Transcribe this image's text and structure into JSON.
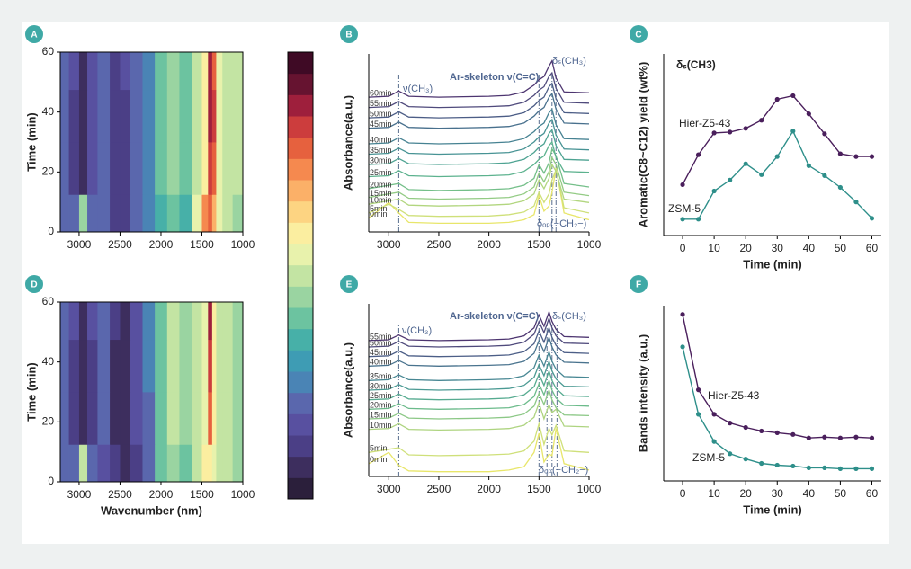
{
  "colorbar_colors": [
    "#2b1f3b",
    "#3d2e5e",
    "#4b3f86",
    "#5850a0",
    "#5a67ad",
    "#4a84b5",
    "#3e9cb4",
    "#47b0a8",
    "#6cc3a0",
    "#9ad4a1",
    "#c3e4a3",
    "#e8f2ac",
    "#fbeea0",
    "#fdd482",
    "#fbb068",
    "#f5894f",
    "#e6613e",
    "#cc3d3d",
    "#9e1f3c",
    "#661330",
    "#3f0a25"
  ],
  "chart_data": [
    {
      "type": "heatmap",
      "panel": "A",
      "ylabel": "Time (min)",
      "x": [
        3200,
        3050,
        2950,
        2850,
        2700,
        2550,
        2450,
        2300,
        2150,
        2000,
        1850,
        1700,
        1550,
        1450,
        1400,
        1350,
        1300,
        1200,
        1050
      ],
      "y": [
        5,
        20,
        40,
        55
      ],
      "z": [
        [
          0.2,
          0.2,
          0.45,
          0.2,
          0.18,
          0.08,
          0.1,
          0.18,
          0.25,
          0.35,
          0.42,
          0.35,
          0.55,
          0.75,
          0.8,
          0.7,
          0.55,
          0.5,
          0.45
        ],
        [
          0.22,
          0.1,
          0.05,
          0.14,
          0.2,
          0.1,
          0.12,
          0.2,
          0.26,
          0.38,
          0.45,
          0.4,
          0.5,
          0.6,
          0.86,
          0.8,
          0.55,
          0.5,
          0.48
        ],
        [
          0.22,
          0.12,
          0.06,
          0.16,
          0.21,
          0.1,
          0.12,
          0.2,
          0.25,
          0.4,
          0.46,
          0.42,
          0.5,
          0.62,
          0.9,
          0.84,
          0.56,
          0.5,
          0.48
        ],
        [
          0.22,
          0.13,
          0.07,
          0.17,
          0.22,
          0.11,
          0.13,
          0.22,
          0.27,
          0.4,
          0.47,
          0.42,
          0.52,
          0.62,
          0.88,
          0.8,
          0.55,
          0.5,
          0.48
        ]
      ],
      "xlim": [
        3230,
        1000
      ],
      "ylim": [
        0,
        60
      ],
      "xticks": [
        3000,
        2500,
        2000,
        1500,
        1000
      ],
      "yticks": [
        0,
        20,
        40,
        60
      ]
    },
    {
      "type": "spectra",
      "panel": "B",
      "ylabel": "Absorbance(a.u.)",
      "annotations": [
        "ν(CH₃)",
        "Ar-skeleton ν(C=C)",
        "δₛ(CH₃)",
        "δₒₚ(−CH₂−)"
      ],
      "x": [
        3200,
        3000,
        2900,
        2800,
        2500,
        2000,
        1800,
        1650,
        1550,
        1500,
        1450,
        1400,
        1370,
        1330,
        1250,
        1000
      ],
      "series": [
        {
          "name": "0min",
          "color": "#e8e66a",
          "values": [
            0.8,
            1.7,
            1.1,
            0.55,
            0.5,
            0.5,
            0.55,
            0.7,
            1.0,
            2.1,
            1.2,
            1.5,
            2.3,
            3.7,
            1.1,
            0.7
          ]
        },
        {
          "name": "5min",
          "color": "#cfe07a",
          "values": [
            1.1,
            1.6,
            1.3,
            0.95,
            0.9,
            0.92,
            1.0,
            1.15,
            1.5,
            2.3,
            1.7,
            2.2,
            3.0,
            3.6,
            1.4,
            1.1
          ]
        },
        {
          "name": "10min",
          "color": "#b2d67f",
          "values": [
            1.6,
            1.8,
            1.9,
            1.55,
            1.5,
            1.55,
            1.6,
            1.8,
            2.2,
            3.0,
            2.5,
            3.1,
            3.9,
            3.5,
            1.9,
            1.7
          ]
        },
        {
          "name": "15min",
          "color": "#93cb84",
          "values": [
            2.0,
            2.2,
            2.3,
            1.95,
            1.9,
            1.95,
            2.0,
            2.2,
            2.6,
            3.4,
            2.9,
            3.5,
            4.3,
            3.9,
            2.3,
            2.1
          ]
        },
        {
          "name": "20min",
          "color": "#74bf89",
          "values": [
            2.5,
            2.7,
            2.8,
            2.45,
            2.4,
            2.45,
            2.5,
            2.7,
            3.1,
            3.9,
            3.4,
            4.0,
            4.8,
            4.4,
            2.8,
            2.6
          ]
        },
        {
          "name": "25min",
          "color": "#5cb28e",
          "values": [
            3.2,
            3.25,
            3.55,
            3.25,
            3.2,
            3.25,
            3.3,
            3.5,
            3.9,
            4.2,
            4.4,
            5.0,
            5.2,
            4.3,
            3.5,
            3.45
          ]
        },
        {
          "name": "30min",
          "color": "#4ea392",
          "values": [
            3.9,
            3.95,
            4.25,
            3.95,
            3.9,
            3.95,
            4.0,
            4.2,
            4.6,
            4.9,
            5.1,
            5.7,
            5.9,
            5.0,
            4.2,
            4.15
          ]
        },
        {
          "name": "35min",
          "color": "#479394",
          "values": [
            4.5,
            4.55,
            4.85,
            4.55,
            4.5,
            4.55,
            4.6,
            4.8,
            5.2,
            5.5,
            5.7,
            6.3,
            6.5,
            5.6,
            4.8,
            4.75
          ]
        },
        {
          "name": "40min",
          "color": "#468292",
          "values": [
            5.1,
            5.15,
            5.45,
            5.15,
            5.1,
            5.15,
            5.2,
            5.4,
            5.8,
            6.1,
            6.3,
            6.9,
            7.1,
            6.2,
            5.4,
            5.35
          ]
        },
        {
          "name": "45min",
          "color": "#48708d",
          "values": [
            6.0,
            6.05,
            6.35,
            6.05,
            6.0,
            6.05,
            6.1,
            6.3,
            6.7,
            7.0,
            7.2,
            7.8,
            8.0,
            7.1,
            6.3,
            6.25
          ]
        },
        {
          "name": "50min",
          "color": "#4c5d86",
          "values": [
            6.6,
            6.65,
            6.95,
            6.65,
            6.6,
            6.65,
            6.7,
            6.9,
            7.3,
            7.6,
            7.8,
            8.4,
            8.6,
            7.7,
            6.9,
            6.85
          ]
        },
        {
          "name": "55min",
          "color": "#4f4a7c",
          "values": [
            7.2,
            7.25,
            7.55,
            7.25,
            7.2,
            7.25,
            7.3,
            7.5,
            7.9,
            8.2,
            8.4,
            9.0,
            9.2,
            8.3,
            7.5,
            7.45
          ]
        },
        {
          "name": "60min",
          "color": "#4d3570",
          "values": [
            7.8,
            7.85,
            8.15,
            7.85,
            7.8,
            7.85,
            7.9,
            8.1,
            8.5,
            8.8,
            9.0,
            9.6,
            9.9,
            8.9,
            8.1,
            8.05
          ]
        }
      ],
      "band_lines": [
        2900,
        1500,
        1370,
        1330
      ],
      "xlim": [
        3200,
        1000
      ],
      "ylim": [
        0,
        10.3
      ],
      "xticks": [
        3000,
        2500,
        2000,
        1500,
        1000
      ]
    },
    {
      "type": "line",
      "panel": "C",
      "title": "δₛ(CH3)",
      "xlabel": "Time (min)",
      "ylabel": "Aromatic(C8~C12) yield (wt%)",
      "x": [
        0,
        5,
        10,
        15,
        20,
        25,
        30,
        35,
        40,
        45,
        50,
        55,
        60
      ],
      "series": [
        {
          "name": "Hier-Z5-43",
          "color": "#4a1f5c",
          "values": [
            2.8,
            4.45,
            5.65,
            5.7,
            5.9,
            6.35,
            7.5,
            7.7,
            6.7,
            5.6,
            4.5,
            4.35,
            4.35
          ]
        },
        {
          "name": "ZSM-5",
          "color": "#2e8f8a",
          "values": [
            0.9,
            0.9,
            2.45,
            3.05,
            3.95,
            3.35,
            4.35,
            5.75,
            3.85,
            3.3,
            2.65,
            1.85,
            0.95
          ]
        }
      ],
      "xlim": [
        -6,
        63
      ],
      "ylim": [
        0,
        10
      ],
      "xticks": [
        0,
        10,
        20,
        30,
        40,
        50,
        60
      ]
    },
    {
      "type": "heatmap",
      "panel": "D",
      "xlabel": "Wavenumber (nm)",
      "ylabel": "Time (min)",
      "x": [
        3200,
        3050,
        2950,
        2850,
        2700,
        2550,
        2450,
        2300,
        2150,
        2000,
        1850,
        1700,
        1550,
        1450,
        1400,
        1350,
        1300,
        1200,
        1050
      ],
      "y": [
        5,
        20,
        40,
        55
      ],
      "z": [
        [
          0.2,
          0.2,
          0.48,
          0.18,
          0.16,
          0.08,
          0.06,
          0.12,
          0.22,
          0.4,
          0.46,
          0.4,
          0.48,
          0.58,
          0.62,
          0.55,
          0.5,
          0.48,
          0.45
        ],
        [
          0.2,
          0.12,
          0.06,
          0.12,
          0.18,
          0.06,
          0.04,
          0.15,
          0.22,
          0.4,
          0.48,
          0.44,
          0.5,
          0.55,
          0.8,
          0.6,
          0.52,
          0.5,
          0.47
        ],
        [
          0.2,
          0.12,
          0.05,
          0.12,
          0.18,
          0.07,
          0.05,
          0.15,
          0.23,
          0.42,
          0.48,
          0.46,
          0.52,
          0.56,
          0.84,
          0.58,
          0.52,
          0.5,
          0.47
        ],
        [
          0.2,
          0.13,
          0.06,
          0.14,
          0.19,
          0.08,
          0.06,
          0.16,
          0.24,
          0.42,
          0.48,
          0.45,
          0.5,
          0.56,
          0.9,
          0.6,
          0.52,
          0.5,
          0.47
        ]
      ],
      "xlim": [
        3230,
        1000
      ],
      "ylim": [
        0,
        60
      ],
      "xticks": [
        3000,
        2500,
        2000,
        1500,
        1000
      ],
      "yticks": [
        0,
        20,
        40,
        60
      ]
    },
    {
      "type": "spectra",
      "panel": "E",
      "ylabel": "Absorbance(a.u.)",
      "annotations": [
        "ν(CH₃)",
        "Ar-skeleton ν(C=C)",
        "δₛ(CH₃)",
        "δₒₚ(−CH₂−)"
      ],
      "x": [
        3200,
        3000,
        2900,
        2800,
        2500,
        2000,
        1800,
        1650,
        1550,
        1500,
        1450,
        1400,
        1370,
        1330,
        1250,
        1000
      ],
      "series": [
        {
          "name": "0min",
          "color": "#e8e66a",
          "values": [
            0.8,
            1.5,
            0.7,
            0.35,
            0.3,
            0.3,
            0.4,
            0.6,
            1.5,
            2.7,
            0.9,
            1.4,
            1.3,
            3.0,
            0.8,
            0.4
          ]
        },
        {
          "name": "5min",
          "color": "#cfe07a",
          "values": [
            1.5,
            1.7,
            1.8,
            1.35,
            1.3,
            1.35,
            1.4,
            1.6,
            2.2,
            3.3,
            2.0,
            3.0,
            2.6,
            3.2,
            1.6,
            1.5
          ]
        },
        {
          "name": "10min",
          "color": "#aed480",
          "values": [
            2.95,
            3.0,
            3.3,
            2.95,
            2.9,
            2.95,
            3.0,
            3.2,
            3.7,
            4.6,
            3.6,
            4.5,
            4.0,
            4.2,
            3.15,
            3.1
          ]
        },
        {
          "name": "15min",
          "color": "#8cc886",
          "values": [
            3.6,
            3.65,
            3.95,
            3.65,
            3.6,
            3.65,
            3.7,
            3.9,
            4.4,
            5.2,
            4.5,
            5.4,
            4.8,
            4.3,
            3.85,
            3.8
          ]
        },
        {
          "name": "20min",
          "color": "#6cbb8b",
          "values": [
            4.2,
            4.25,
            4.55,
            4.25,
            4.2,
            4.25,
            4.3,
            4.5,
            5.0,
            5.8,
            5.1,
            6.0,
            5.4,
            4.9,
            4.45,
            4.4
          ]
        },
        {
          "name": "25min",
          "color": "#56ab90",
          "values": [
            4.8,
            4.85,
            5.15,
            4.85,
            4.8,
            4.85,
            4.9,
            5.1,
            5.6,
            6.4,
            5.7,
            6.6,
            6.0,
            5.5,
            5.05,
            5.0
          ]
        },
        {
          "name": "30min",
          "color": "#4b9a93",
          "values": [
            5.4,
            5.45,
            5.75,
            5.45,
            5.4,
            5.45,
            5.5,
            5.7,
            6.2,
            7.0,
            6.3,
            7.2,
            6.6,
            6.1,
            5.65,
            5.6
          ]
        },
        {
          "name": "35min",
          "color": "#478793",
          "values": [
            6.0,
            6.05,
            6.35,
            6.05,
            6.0,
            6.05,
            6.1,
            6.3,
            6.8,
            7.6,
            6.9,
            7.8,
            7.2,
            6.7,
            6.25,
            6.2
          ]
        },
        {
          "name": "40min",
          "color": "#49738e",
          "values": [
            6.9,
            6.95,
            7.25,
            6.95,
            6.9,
            6.95,
            7.0,
            7.2,
            7.7,
            8.5,
            7.8,
            8.7,
            8.1,
            7.6,
            7.15,
            7.1
          ]
        },
        {
          "name": "45min",
          "color": "#4c5e87",
          "values": [
            7.5,
            7.55,
            7.85,
            7.55,
            7.5,
            7.55,
            7.6,
            7.8,
            8.3,
            9.1,
            8.4,
            9.3,
            8.7,
            8.2,
            7.75,
            7.7
          ]
        },
        {
          "name": "50min",
          "color": "#4f4a7c",
          "values": [
            8.1,
            8.15,
            8.45,
            8.15,
            8.1,
            8.15,
            8.2,
            8.4,
            8.9,
            9.7,
            9.0,
            9.9,
            9.3,
            8.8,
            8.35,
            8.3
          ]
        },
        {
          "name": "55min",
          "color": "#4d3570",
          "values": [
            8.5,
            8.55,
            8.85,
            8.55,
            8.5,
            8.55,
            8.6,
            8.8,
            9.3,
            10.1,
            9.4,
            10.3,
            9.7,
            9.2,
            8.75,
            8.7
          ]
        }
      ],
      "band_lines": [
        2900,
        1500,
        1420,
        1370,
        1320
      ],
      "xlim": [
        3200,
        1000
      ],
      "ylim": [
        0,
        10.8
      ],
      "xticks": [
        3000,
        2500,
        2000,
        1500,
        1000
      ]
    },
    {
      "type": "line",
      "panel": "F",
      "xlabel": "Time (min)",
      "ylabel": "Bands intensity (a.u.)",
      "x": [
        0,
        5,
        10,
        15,
        20,
        25,
        30,
        35,
        40,
        45,
        50,
        55,
        60
      ],
      "series": [
        {
          "name": "Hier-Z5-43",
          "color": "#4a1f5c",
          "values": [
            9.5,
            5.2,
            3.8,
            3.3,
            3.05,
            2.85,
            2.75,
            2.65,
            2.45,
            2.5,
            2.45,
            2.5,
            2.45
          ]
        },
        {
          "name": "ZSM-5",
          "color": "#2e8f8a",
          "values": [
            7.65,
            3.8,
            2.25,
            1.55,
            1.25,
            1.0,
            0.9,
            0.85,
            0.75,
            0.75,
            0.7,
            0.7,
            0.7
          ]
        }
      ],
      "xlim": [
        -6,
        63
      ],
      "ylim": [
        0,
        10
      ],
      "xticks": [
        0,
        10,
        20,
        30,
        40,
        50,
        60
      ]
    }
  ]
}
